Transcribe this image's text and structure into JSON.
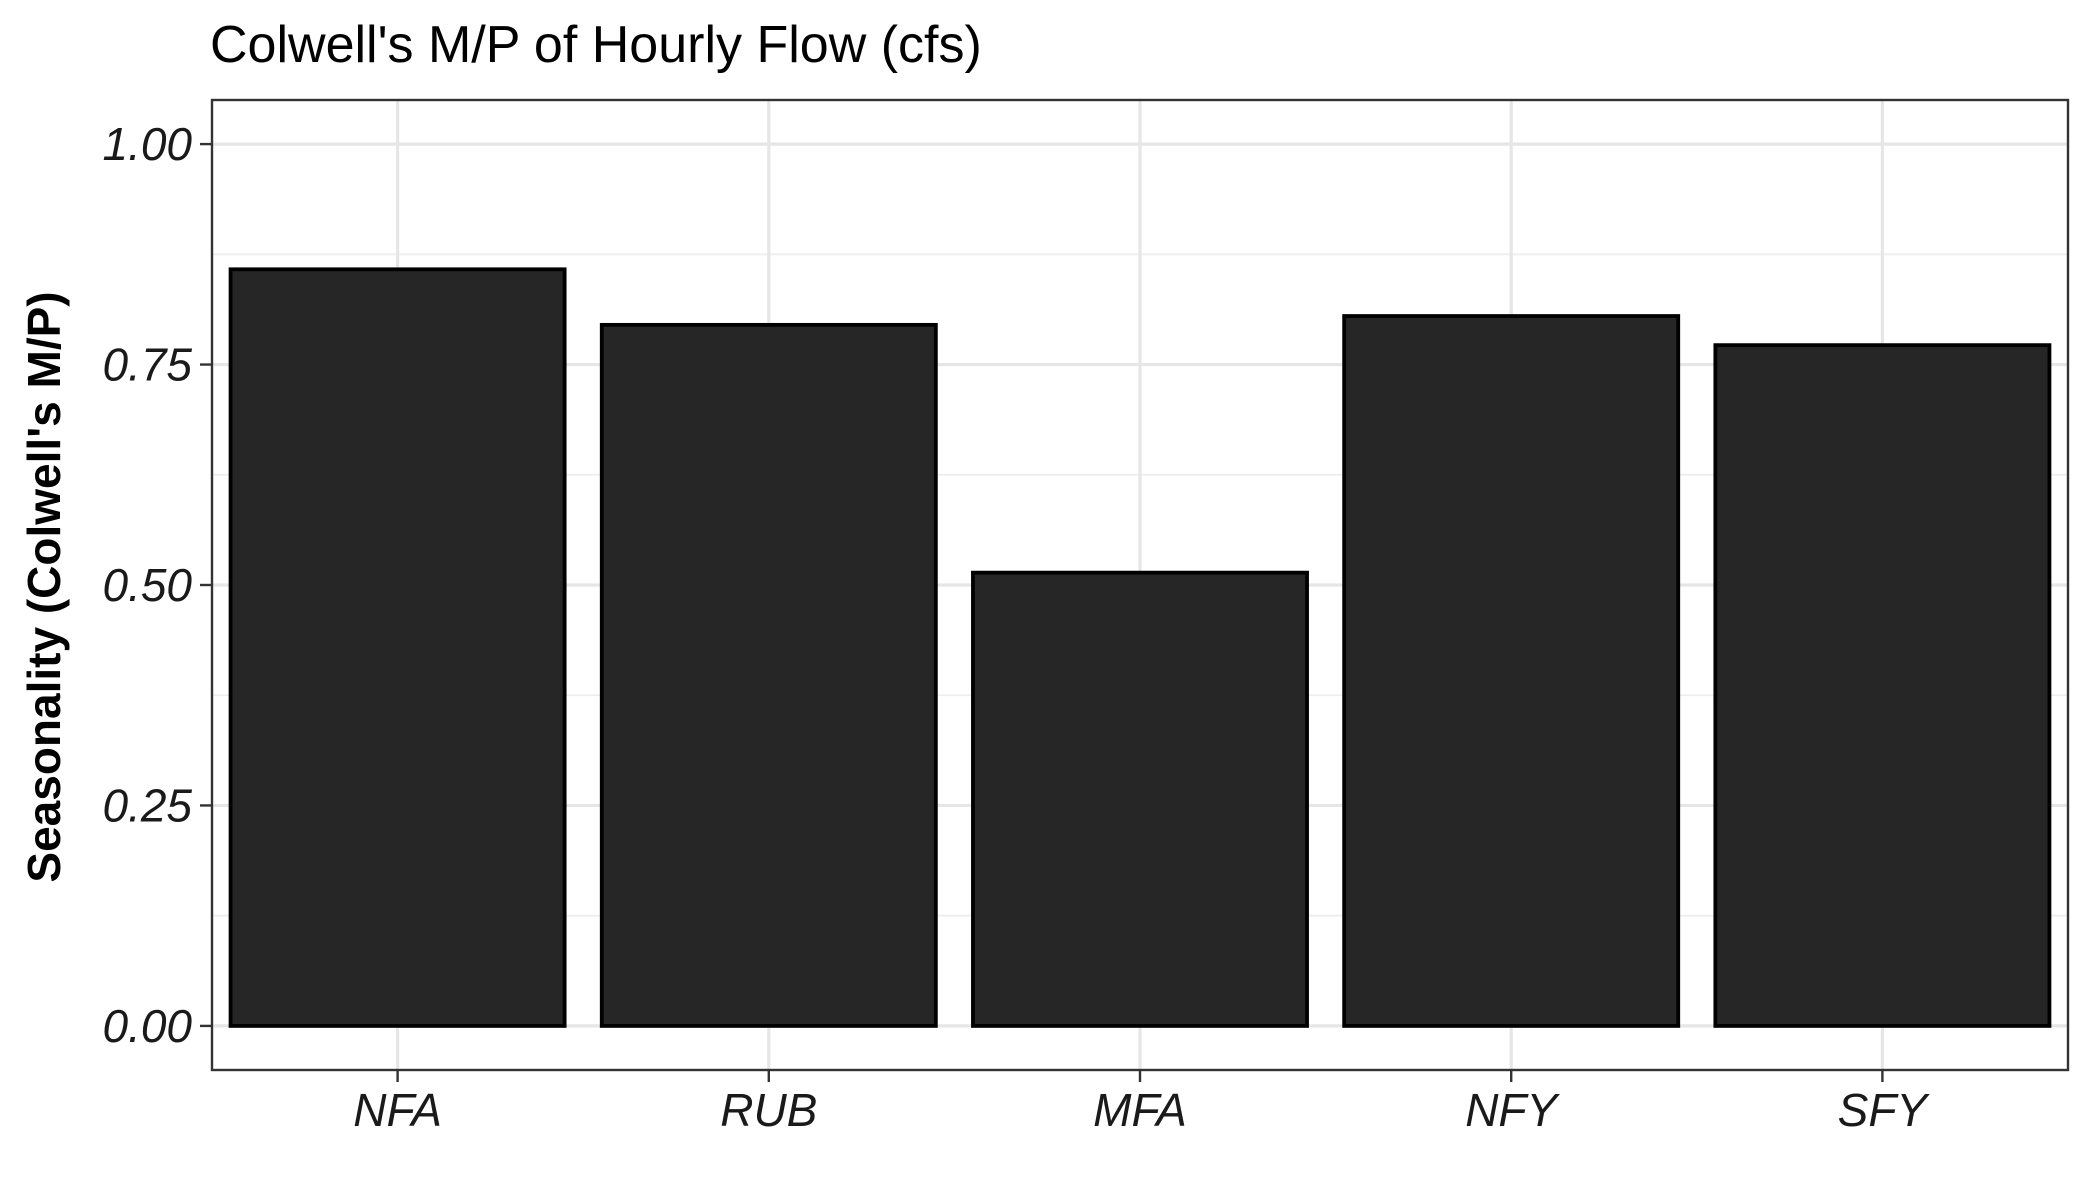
{
  "chart_data": {
    "type": "bar",
    "title": "Colwell's M/P of Hourly Flow (cfs)",
    "xlabel": "",
    "ylabel": "Seasonality (Colwell's M/P)",
    "categories": [
      "NFA",
      "RUB",
      "MFA",
      "NFY",
      "SFY"
    ],
    "values": [
      0.858,
      0.795,
      0.514,
      0.805,
      0.772
    ],
    "ylim": [
      -0.05,
      1.05
    ],
    "yticks": [
      0.0,
      0.25,
      0.5,
      0.75,
      1.0
    ],
    "ytick_labels": [
      "0.00",
      "0.25",
      "0.50",
      "0.75",
      "1.00"
    ],
    "grid": true,
    "legend": "none",
    "bar_color": "#262626",
    "bar_outline_color": "#000000"
  }
}
